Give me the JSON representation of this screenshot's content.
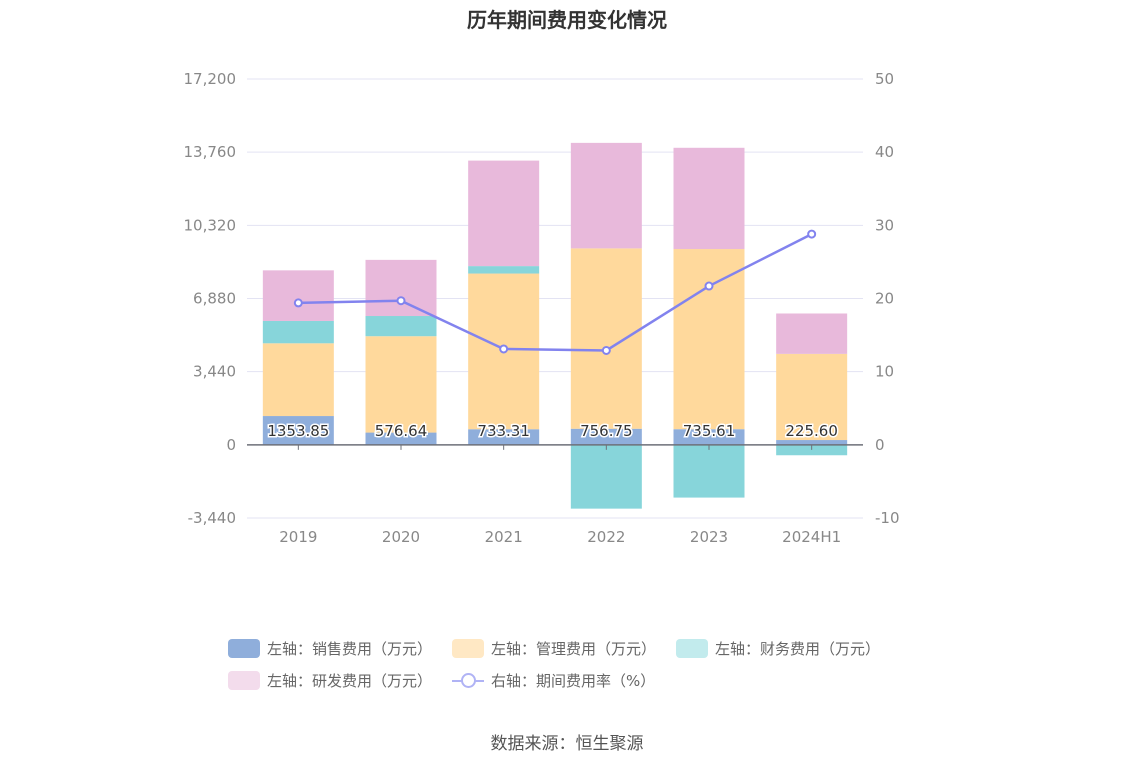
{
  "chart_data": {
    "type": "bar",
    "title": "历年期间费用变化情况",
    "categories": [
      "2019",
      "2020",
      "2021",
      "2022",
      "2023",
      "2024H1"
    ],
    "left_axis": {
      "ticks": [
        "17,200",
        "13,760",
        "10,320",
        "6,880",
        "3,440",
        "0",
        "-3,440"
      ],
      "ylim": [
        -3440,
        17200
      ]
    },
    "right_axis": {
      "ticks": [
        "50",
        "40",
        "30",
        "20",
        "10",
        "0",
        "-10"
      ],
      "ylim": [
        -10,
        50
      ]
    },
    "series": [
      {
        "name": "左轴：销售费用（万元）",
        "color": "#8faedb",
        "values": [
          1353.85,
          576.64,
          733.31,
          756.75,
          735.61,
          225.6
        ],
        "labels": [
          "1353.85",
          "576.64",
          "733.31",
          "756.75",
          "735.61",
          "225.60"
        ]
      },
      {
        "name": "左轴：管理费用（万元）",
        "color": "#ffd99c",
        "values": [
          3420,
          4530,
          7320,
          8480,
          8470,
          4050
        ]
      },
      {
        "name": "左轴：财务费用（万元）",
        "color": "#87d5da",
        "values": [
          1050,
          950,
          350,
          -3000,
          -2480,
          -490
        ]
      },
      {
        "name": "左轴：研发费用（万元）",
        "color": "#e8b9db",
        "values": [
          2380,
          2640,
          4960,
          4960,
          4760,
          1900
        ]
      }
    ],
    "line_series": {
      "name": "右轴：期间费用率（%）",
      "color": "#8283ee",
      "values": [
        19.4,
        19.7,
        13.1,
        12.9,
        21.7,
        28.8
      ]
    },
    "legend_position": "bottom",
    "grid": true
  },
  "source_text": "数据来源：恒生聚源"
}
